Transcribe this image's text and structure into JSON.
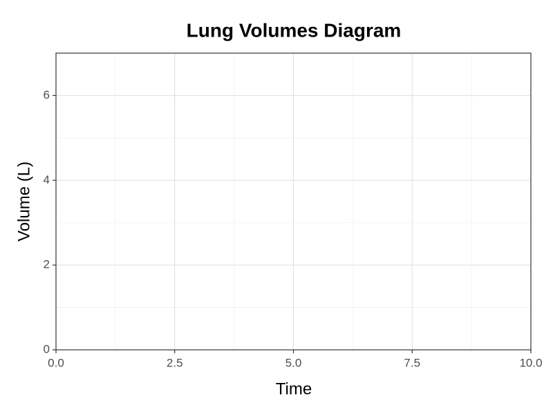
{
  "chart_data": {
    "type": "line",
    "title": "Lung Volumes Diagram",
    "x_label": "Time",
    "y_label": "Volume (L)",
    "xlim": [
      0,
      10
    ],
    "xticks": [
      {
        "value": 0,
        "label": "0.0"
      },
      2.5,
      {
        "value": 5,
        "label": "5.0"
      },
      7.5,
      {
        "value": 10,
        "label": "10.0"
      }
    ],
    "xminorticks": [
      1.25,
      3.75,
      6.25,
      8.75
    ],
    "ylim": [
      0,
      7
    ],
    "yticks": [
      0,
      2,
      4,
      6
    ],
    "yminorticks": [
      1,
      3,
      5
    ],
    "grid": true
  }
}
